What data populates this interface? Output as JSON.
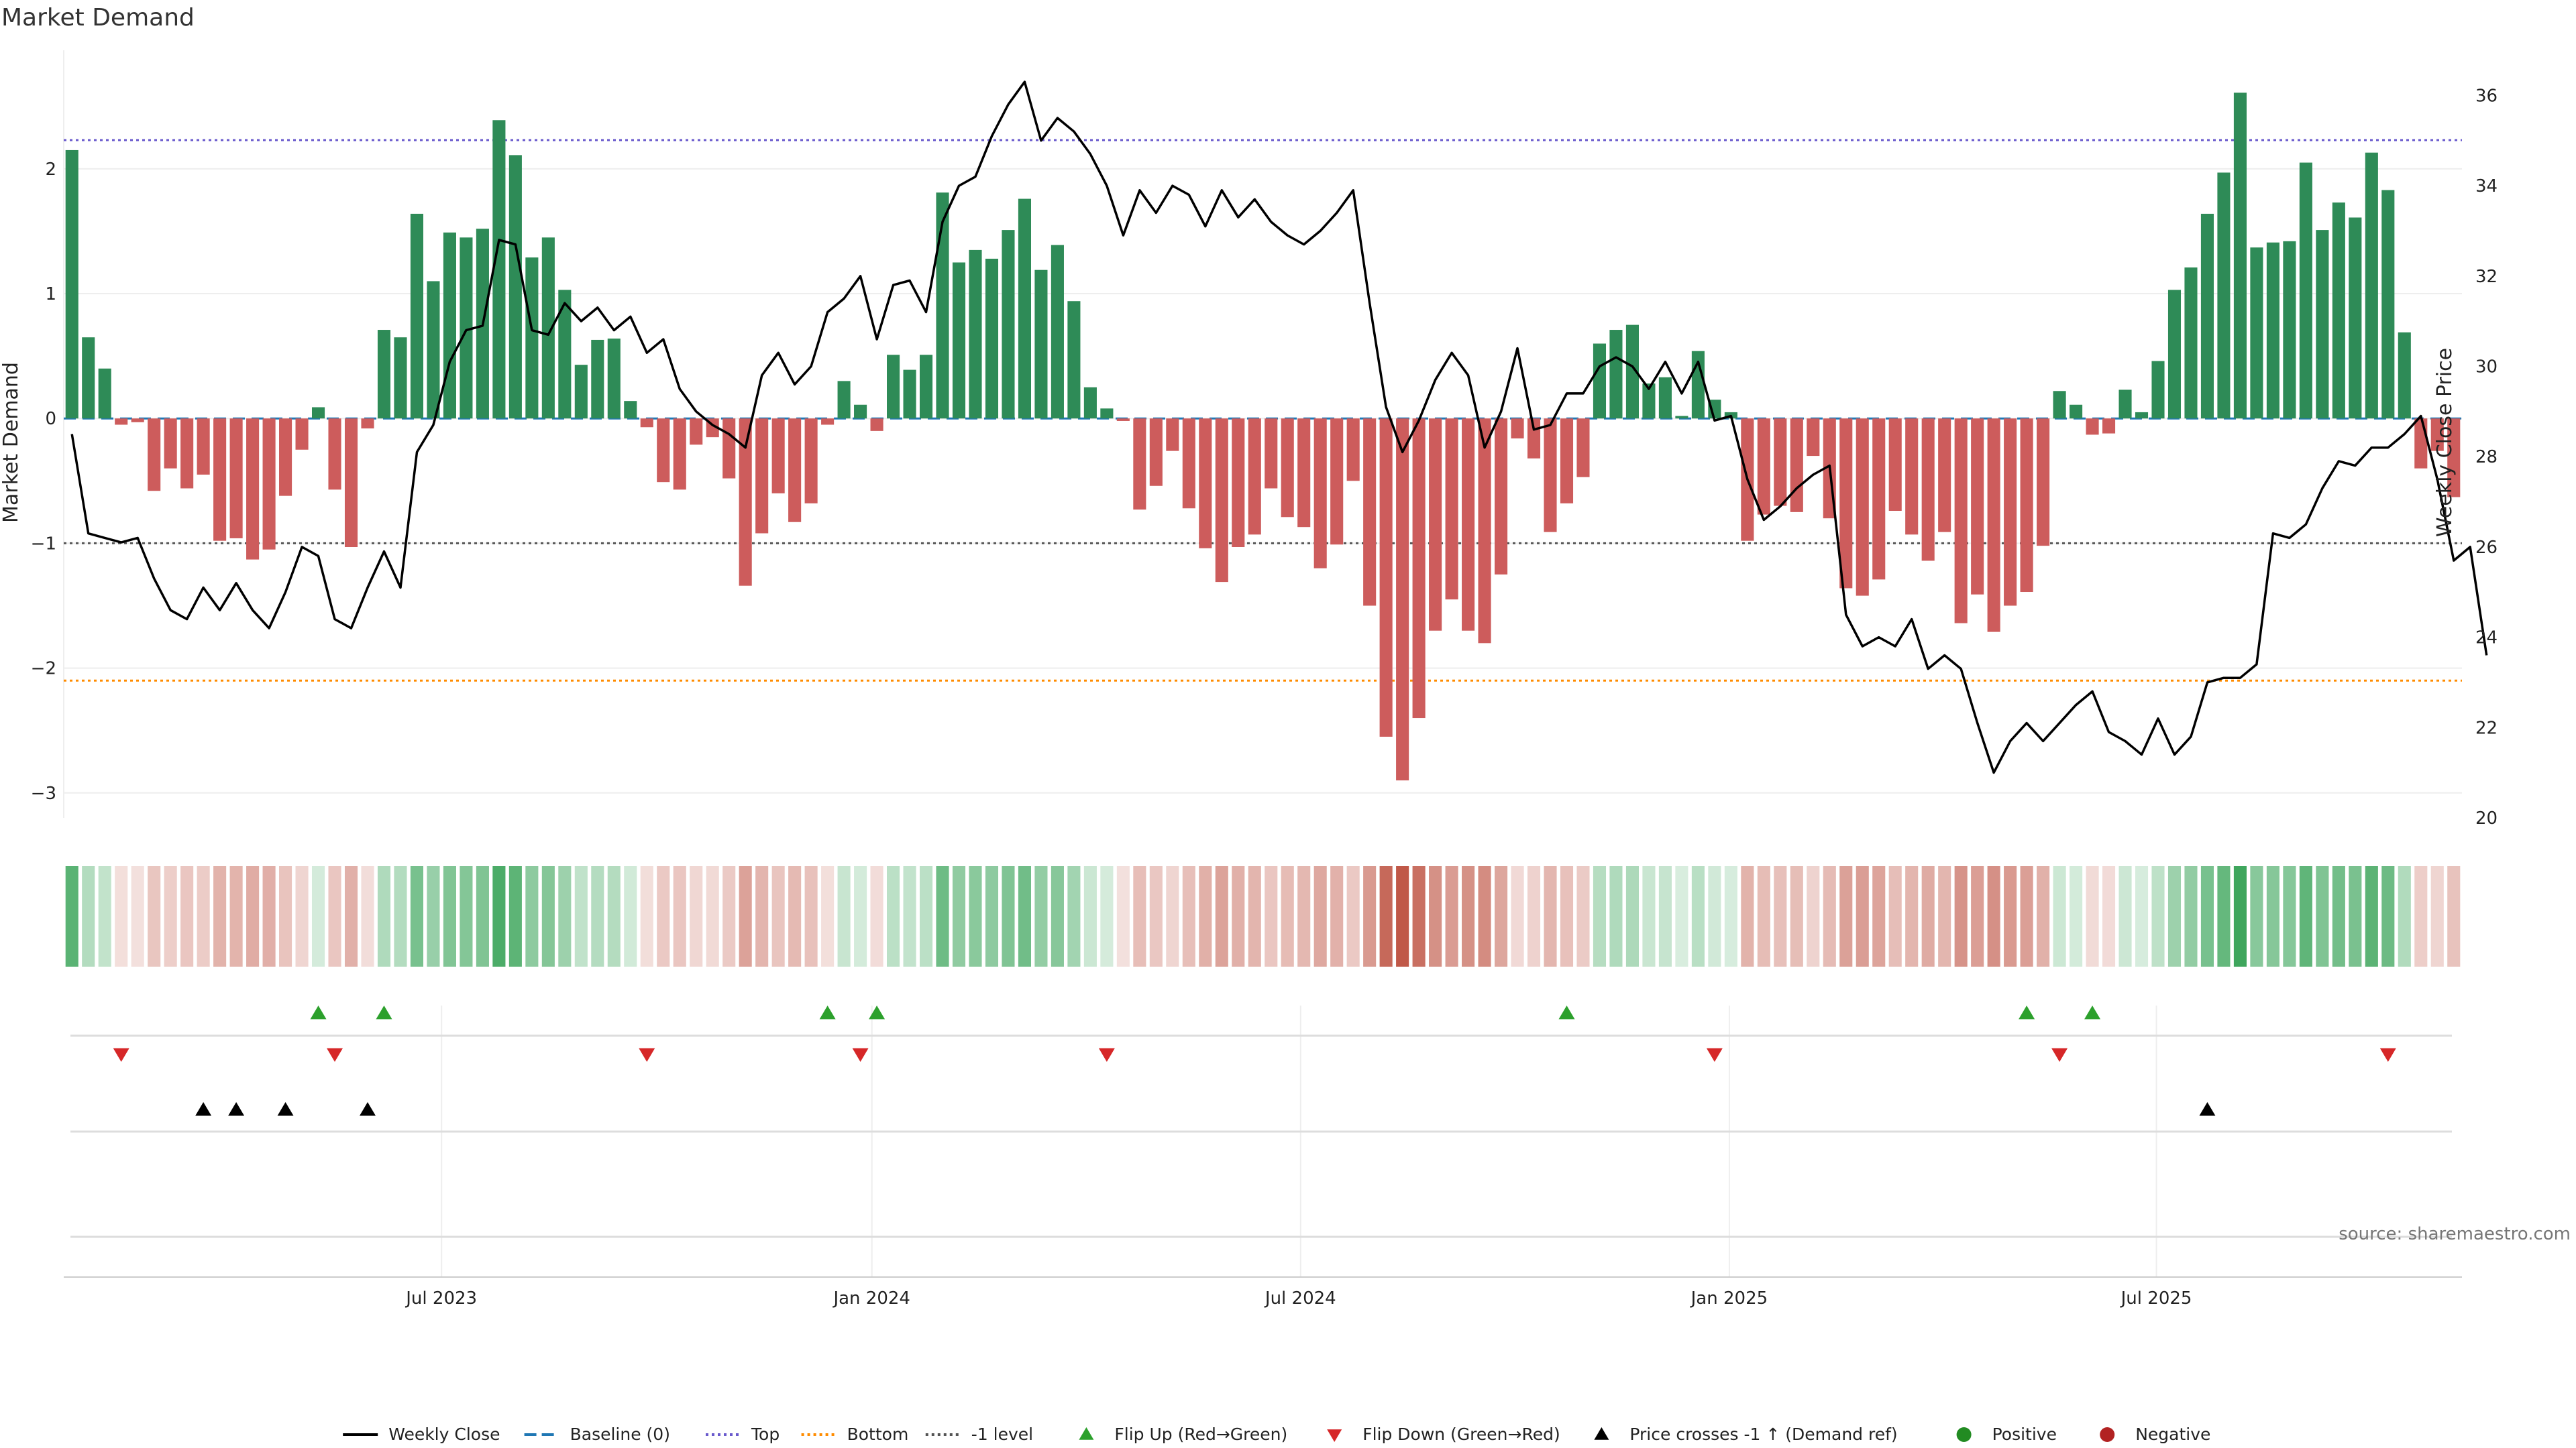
{
  "title": "Market Demand",
  "source": "source: sharemaestro.com",
  "colors": {
    "positive": "#2e8b57",
    "negative": "#cd5c5c",
    "close_line": "#000000",
    "top_line": "#6a5acd",
    "bottom_line": "#ff8c00",
    "minus1_line": "#555555",
    "flip_up": "#2ca02c",
    "flip_down": "#d62728",
    "cross": "#000000",
    "legend_positive": "#228b22",
    "legend_negative": "#b22222"
  },
  "chart_data": {
    "type": "bar",
    "title": "Market Demand",
    "ylabel_left": "Market Demand",
    "ylabel_right": "Weekly Close Price",
    "ylim_left": [
      -3.2,
      2.95
    ],
    "ylim_right": [
      20,
      37
    ],
    "yticks_left": [
      2,
      1,
      0,
      -1,
      -2,
      -3
    ],
    "yticks_left_labels": [
      "2",
      "1",
      "0",
      "−1",
      "−2",
      "−3"
    ],
    "yticks_right": [
      36,
      34,
      32,
      30,
      28,
      26,
      24,
      22,
      20
    ],
    "x_ticks": [
      {
        "index": 22.5,
        "label": "Jul 2023"
      },
      {
        "index": 48.7,
        "label": "Jan 2024"
      },
      {
        "index": 74.8,
        "label": "Jul 2024"
      },
      {
        "index": 100.9,
        "label": "Jan 2025"
      },
      {
        "index": 126.9,
        "label": "Jul 2025"
      }
    ],
    "reference_lines": {
      "top": 2.23,
      "bottom": -2.1,
      "minus1": -1.0,
      "baseline": 0
    },
    "demand": [
      2.15,
      0.65,
      0.4,
      -0.05,
      -0.03,
      -0.58,
      -0.4,
      -0.56,
      -0.45,
      -0.98,
      -0.96,
      -1.13,
      -1.05,
      -0.62,
      -0.25,
      0.09,
      -0.57,
      -1.03,
      -0.08,
      0.71,
      0.65,
      1.64,
      1.1,
      1.49,
      1.45,
      1.52,
      2.39,
      2.11,
      1.29,
      1.45,
      1.03,
      0.43,
      0.63,
      0.64,
      0.14,
      -0.07,
      -0.51,
      -0.57,
      -0.21,
      -0.15,
      -0.48,
      -1.34,
      -0.92,
      -0.6,
      -0.83,
      -0.68,
      -0.05,
      0.3,
      0.11,
      -0.1,
      0.51,
      0.39,
      0.51,
      1.81,
      1.25,
      1.35,
      1.28,
      1.51,
      1.76,
      1.19,
      1.39,
      0.94,
      0.25,
      0.08,
      -0.02,
      -0.73,
      -0.54,
      -0.26,
      -0.72,
      -1.04,
      -1.31,
      -1.03,
      -0.93,
      -0.56,
      -0.79,
      -0.87,
      -1.2,
      -1.01,
      -0.5,
      -1.5,
      -2.55,
      -2.9,
      -2.4,
      -1.7,
      -1.45,
      -1.7,
      -1.8,
      -1.25,
      -0.16,
      -0.32,
      -0.91,
      -0.68,
      -0.47,
      0.6,
      0.71,
      0.75,
      0.28,
      0.33,
      0.02,
      0.54,
      0.15,
      0.05,
      -0.98,
      -0.77,
      -0.7,
      -0.75,
      -0.3,
      -0.8,
      -1.36,
      -1.42,
      -1.29,
      -0.74,
      -0.93,
      -1.14,
      -0.91,
      -1.64,
      -1.41,
      -1.71,
      -1.5,
      -1.39,
      -1.02,
      0.22,
      0.11,
      -0.13,
      -0.12,
      0.23,
      0.05,
      0.46,
      1.03,
      1.21,
      1.64,
      1.97,
      2.61,
      1.37,
      1.41,
      1.42,
      2.05,
      1.51,
      1.73,
      1.61,
      2.13,
      1.83,
      0.69,
      -0.4,
      -0.26,
      -0.63
    ],
    "close": [
      28.5,
      26.3,
      26.2,
      26.1,
      26.2,
      25.3,
      24.6,
      24.4,
      25.1,
      24.6,
      25.2,
      24.6,
      24.2,
      25.0,
      26.0,
      25.8,
      24.4,
      24.2,
      25.1,
      25.9,
      25.1,
      28.1,
      28.7,
      30.1,
      30.8,
      30.9,
      32.8,
      32.7,
      30.8,
      30.7,
      31.4,
      31.0,
      31.3,
      30.8,
      31.1,
      30.3,
      30.6,
      29.5,
      29.0,
      28.7,
      28.5,
      28.2,
      29.8,
      30.3,
      29.6,
      30.0,
      31.2,
      31.5,
      32.0,
      30.6,
      31.8,
      31.9,
      31.2,
      33.2,
      34.0,
      34.2,
      35.1,
      35.8,
      36.3,
      35.0,
      35.5,
      35.2,
      34.7,
      34.0,
      32.9,
      33.9,
      33.4,
      34.0,
      33.8,
      33.1,
      33.9,
      33.3,
      33.7,
      33.2,
      32.9,
      32.7,
      33.0,
      33.4,
      33.9,
      31.4,
      29.1,
      28.1,
      28.8,
      29.7,
      30.3,
      29.8,
      28.2,
      29.0,
      30.4,
      28.6,
      28.7,
      29.4,
      29.4,
      30.0,
      30.2,
      30.0,
      29.5,
      30.1,
      29.4,
      30.1,
      28.8,
      28.9,
      27.5,
      26.6,
      26.9,
      27.3,
      27.6,
      27.8,
      24.5,
      23.8,
      24.0,
      23.8,
      24.4,
      23.3,
      23.6,
      23.3,
      22.1,
      21.0,
      21.7,
      22.1,
      21.7,
      22.1,
      22.5,
      22.8,
      21.9,
      21.7,
      21.4,
      22.2,
      21.4,
      21.8,
      23.0,
      23.1,
      23.1,
      23.4,
      26.3,
      26.2,
      26.5,
      27.3,
      27.9,
      27.8,
      28.2,
      28.2,
      28.5,
      28.9,
      27.5,
      25.7,
      26.0,
      23.6
    ],
    "tile_intensity_note": "heat strip mirrors demand sign and magnitude",
    "flip_up_indices": [
      15,
      19,
      46,
      49,
      91,
      119,
      123
    ],
    "flip_down_indices": [
      3,
      16,
      35,
      48,
      63,
      100,
      121,
      141
    ],
    "cross_up_indices": [
      8,
      10,
      13,
      18,
      130
    ]
  },
  "legend": [
    {
      "label": "Weekly Close",
      "kind": "solid-line",
      "color": "#000000"
    },
    {
      "label": "Baseline (0)",
      "kind": "dashed-line",
      "color": "#1f77b4"
    },
    {
      "label": "Top",
      "kind": "dotted-line",
      "color": "#6a5acd"
    },
    {
      "label": "Bottom",
      "kind": "dotted-line",
      "color": "#ff8c00"
    },
    {
      "label": "-1 level",
      "kind": "dotted-line",
      "color": "#555555"
    },
    {
      "label": "Flip Up (Red→Green)",
      "kind": "triangle-up",
      "color": "#2ca02c"
    },
    {
      "label": "Flip Down (Green→Red)",
      "kind": "triangle-down",
      "color": "#d62728"
    },
    {
      "label": "Price crosses -1 ↑ (Demand ref)",
      "kind": "triangle-up",
      "color": "#000000"
    },
    {
      "label": "Positive",
      "kind": "dot",
      "color": "#228b22"
    },
    {
      "label": "Negative",
      "kind": "dot",
      "color": "#b22222"
    }
  ]
}
